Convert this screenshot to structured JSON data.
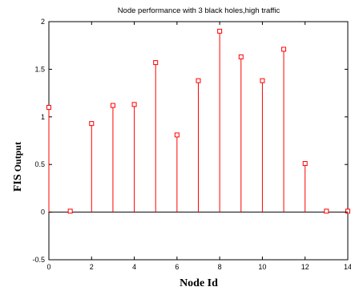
{
  "chart_data": {
    "type": "stem",
    "title": "Node performance with 3 black holes,high traffic",
    "xlabel": "Node Id",
    "ylabel_part1": "FIS",
    "ylabel_part2": "Output",
    "xlim": [
      0,
      14
    ],
    "ylim": [
      -0.5,
      2
    ],
    "xticks": [
      "0",
      "2",
      "4",
      "6",
      "8",
      "10",
      "12",
      "14"
    ],
    "yticks": [
      "-0.5",
      "0",
      "0.5",
      "1",
      "1.5",
      "2"
    ],
    "x": [
      0,
      1,
      2,
      3,
      4,
      5,
      6,
      7,
      8,
      9,
      10,
      11,
      12,
      13,
      14
    ],
    "y": [
      1.1,
      0.01,
      0.93,
      1.12,
      1.13,
      1.57,
      0.81,
      1.38,
      1.9,
      1.63,
      1.38,
      1.71,
      0.51,
      0.01,
      0.01
    ],
    "stem_color": "#ff0000",
    "baseline_color": "#000000",
    "grid": false
  }
}
